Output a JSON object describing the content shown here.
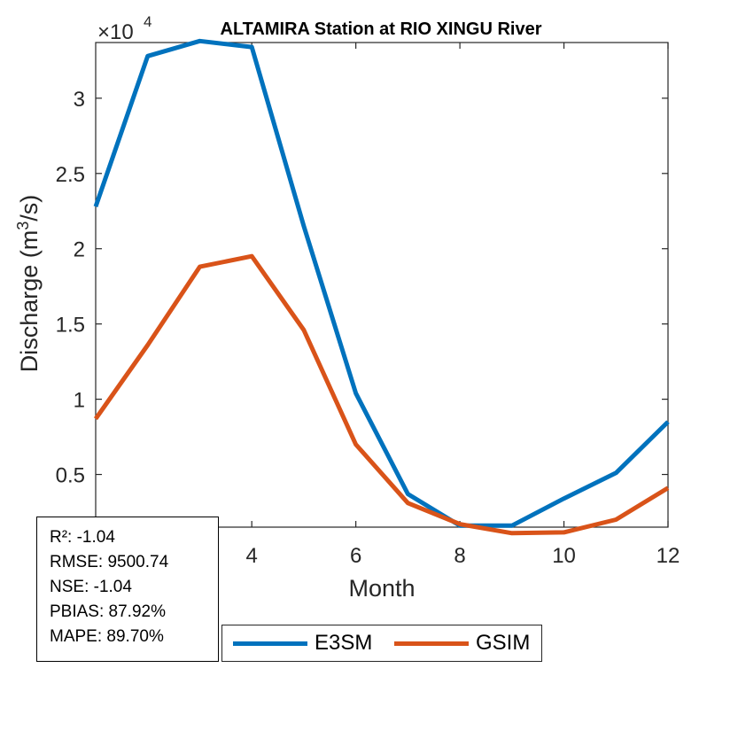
{
  "chart_data": {
    "type": "line",
    "title": "ALTAMIRA  Station at  RIO XINGU  River",
    "xlabel": "Month",
    "ylabel_base": "Discharge (m",
    "ylabel_sup": "3",
    "ylabel_tail": "/s)",
    "exponent_base": "×10",
    "exponent_power": "4",
    "x": [
      1,
      2,
      3,
      4,
      5,
      6,
      7,
      8,
      9,
      10,
      11,
      12
    ],
    "xlim": [
      1,
      12
    ],
    "ylim": [
      0.15,
      3.37
    ],
    "x_ticks": [
      4,
      6,
      8,
      10,
      12
    ],
    "y_ticks": [
      0.5,
      1,
      1.5,
      2,
      2.5,
      3
    ],
    "y_tick_labels": [
      "0.5",
      "1",
      "1.5",
      "2",
      "2.5",
      "3"
    ],
    "x_tick_labels": [
      "4",
      "6",
      "8",
      "10",
      "12"
    ],
    "grid": false,
    "series": [
      {
        "name": "E3SM",
        "color": "#0072BD",
        "values": [
          2.28,
          3.28,
          3.38,
          3.34,
          2.15,
          1.04,
          0.37,
          0.16,
          0.16,
          0.34,
          0.51,
          0.85
        ]
      },
      {
        "name": "GSIM",
        "color": "#D95319",
        "values": [
          0.87,
          1.36,
          1.88,
          1.95,
          1.46,
          0.7,
          0.31,
          0.17,
          0.11,
          0.115,
          0.2,
          0.41
        ]
      }
    ],
    "legend_position": "bottom-outside"
  },
  "stats": {
    "r2": "R²: -1.04",
    "rmse": "RMSE: 9500.74",
    "nse": "NSE: -1.04",
    "pbias": "PBIAS: 87.92%",
    "mape": "MAPE: 89.70%"
  }
}
